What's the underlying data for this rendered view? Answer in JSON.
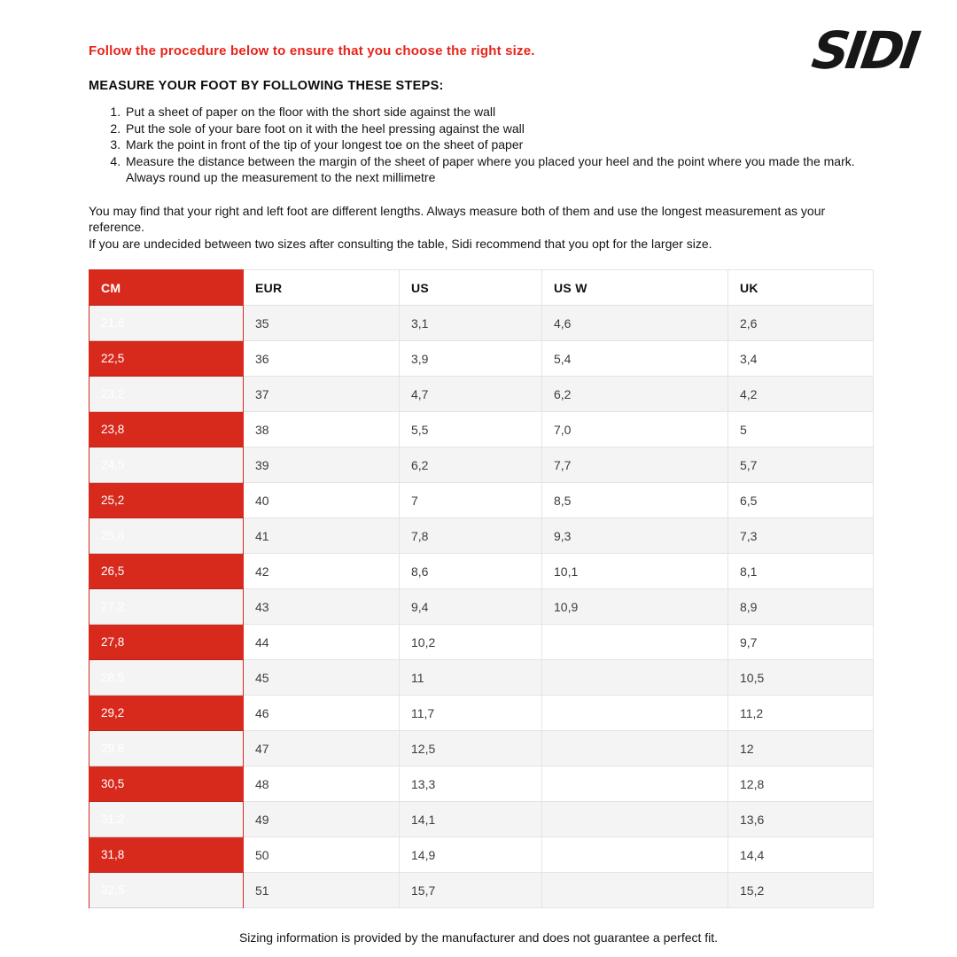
{
  "page": {
    "intro": "Follow the procedure below to ensure that you choose the right size.",
    "logo_text": "SIDI",
    "steps_heading": "MEASURE YOUR FOOT BY FOLLOWING THESE STEPS:",
    "steps": [
      "Put a sheet of paper on the floor with the short side against the wall",
      "Put the sole of your bare foot on it with the heel pressing against the wall",
      "Mark the point in front of the tip of your longest toe on the sheet of paper",
      "Measure the distance between the margin of the sheet of paper where you placed your heel and the point where you made the mark. Always round up the measurement to the next millimetre"
    ],
    "note1": "You may find that your right and left foot are different lengths. Always measure both of them and use the longest measurement as your reference.",
    "note2": "If you are undecided between two sizes after consulting the table, Sidi recommend that you opt for the larger size.",
    "footer": "Sizing information is provided by the manufacturer and does not guarantee a perfect fit."
  },
  "table": {
    "headers": [
      "CM",
      "EUR",
      "US",
      "US W",
      "UK"
    ],
    "rows": [
      [
        "21,8",
        "35",
        "3,1",
        "4,6",
        "2,6"
      ],
      [
        "22,5",
        "36",
        "3,9",
        "5,4",
        "3,4"
      ],
      [
        "23,2",
        "37",
        "4,7",
        "6,2",
        "4,2"
      ],
      [
        "23,8",
        "38",
        "5,5",
        "7,0",
        "5"
      ],
      [
        "24,5",
        "39",
        "6,2",
        "7,7",
        "5,7"
      ],
      [
        "25,2",
        "40",
        "7",
        "8,5",
        "6,5"
      ],
      [
        "25,8",
        "41",
        "7,8",
        "9,3",
        "7,3"
      ],
      [
        "26,5",
        "42",
        "8,6",
        "10,1",
        "8,1"
      ],
      [
        "27,2",
        "43",
        "9,4",
        "10,9",
        "8,9"
      ],
      [
        "27,8",
        "44",
        "10,2",
        "",
        "9,7"
      ],
      [
        "28,5",
        "45",
        "11",
        "",
        "10,5"
      ],
      [
        "29,2",
        "46",
        "11,7",
        "",
        "11,2"
      ],
      [
        "29,8",
        "47",
        "12,5",
        "",
        "12"
      ],
      [
        "30,5",
        "48",
        "13,3",
        "",
        "12,8"
      ],
      [
        "31,2",
        "49",
        "14,1",
        "",
        "13,6"
      ],
      [
        "31,8",
        "50",
        "14,9",
        "",
        "14,4"
      ],
      [
        "32,5",
        "51",
        "15,7",
        "",
        "15,2"
      ]
    ]
  },
  "colors": {
    "accent_red": "#d8291d",
    "intro_red": "#e8231a",
    "row_alt": "#f4f4f5"
  }
}
